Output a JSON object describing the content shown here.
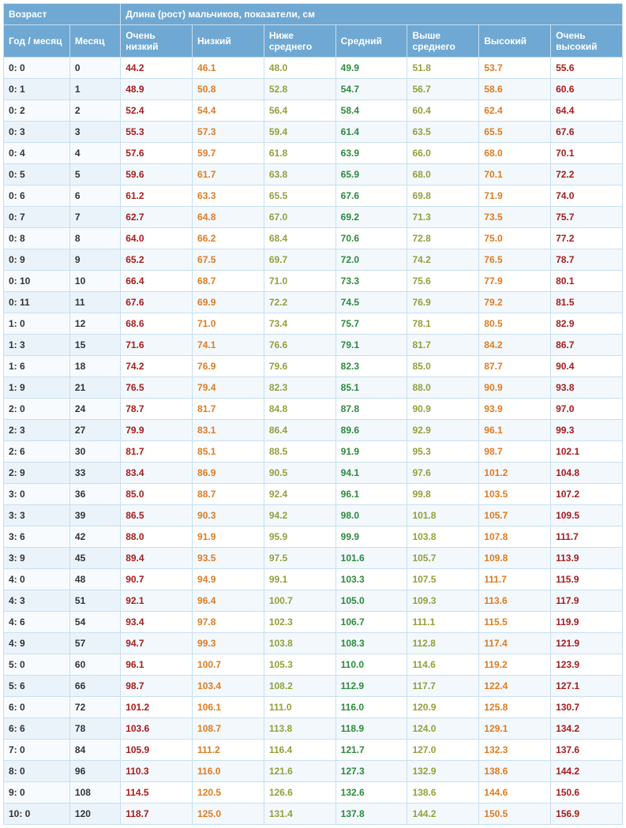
{
  "headers": {
    "age_group": "Возраст",
    "length_group": "Длина (рост) мальчиков, показатели, см",
    "year_month": "Год / месяц",
    "month": "Месяц",
    "cols": [
      "Очень низкий",
      "Низкий",
      "Ниже среднего",
      "Средний",
      "Выше среднего",
      "Высокий",
      "Очень высокий"
    ]
  },
  "col_colors": [
    "c0",
    "c1",
    "c2",
    "c3",
    "c2",
    "c1",
    "c0"
  ],
  "rows": [
    {
      "age": "0: 0",
      "m": "0",
      "v": [
        "44.2",
        "46.1",
        "48.0",
        "49.9",
        "51.8",
        "53.7",
        "55.6"
      ]
    },
    {
      "age": "0: 1",
      "m": "1",
      "v": [
        "48.9",
        "50.8",
        "52.8",
        "54.7",
        "56.7",
        "58.6",
        "60.6"
      ]
    },
    {
      "age": "0: 2",
      "m": "2",
      "v": [
        "52.4",
        "54.4",
        "56.4",
        "58.4",
        "60.4",
        "62.4",
        "64.4"
      ]
    },
    {
      "age": "0: 3",
      "m": "3",
      "v": [
        "55.3",
        "57.3",
        "59.4",
        "61.4",
        "63.5",
        "65.5",
        "67.6"
      ]
    },
    {
      "age": "0: 4",
      "m": "4",
      "v": [
        "57.6",
        "59.7",
        "61.8",
        "63.9",
        "66.0",
        "68.0",
        "70.1"
      ]
    },
    {
      "age": "0: 5",
      "m": "5",
      "v": [
        "59.6",
        "61.7",
        "63.8",
        "65.9",
        "68.0",
        "70.1",
        "72.2"
      ]
    },
    {
      "age": "0: 6",
      "m": "6",
      "v": [
        "61.2",
        "63.3",
        "65.5",
        "67.6",
        "69.8",
        "71.9",
        "74.0"
      ]
    },
    {
      "age": "0: 7",
      "m": "7",
      "v": [
        "62.7",
        "64.8",
        "67.0",
        "69.2",
        "71.3",
        "73.5",
        "75.7"
      ]
    },
    {
      "age": "0: 8",
      "m": "8",
      "v": [
        "64.0",
        "66.2",
        "68.4",
        "70.6",
        "72.8",
        "75.0",
        "77.2"
      ]
    },
    {
      "age": "0: 9",
      "m": "9",
      "v": [
        "65.2",
        "67.5",
        "69.7",
        "72.0",
        "74.2",
        "76.5",
        "78.7"
      ]
    },
    {
      "age": "0: 10",
      "m": "10",
      "v": [
        "66.4",
        "68.7",
        "71.0",
        "73.3",
        "75.6",
        "77.9",
        "80.1"
      ]
    },
    {
      "age": "0: 11",
      "m": "11",
      "v": [
        "67.6",
        "69.9",
        "72.2",
        "74.5",
        "76.9",
        "79.2",
        "81.5"
      ]
    },
    {
      "age": "1: 0",
      "m": "12",
      "v": [
        "68.6",
        "71.0",
        "73.4",
        "75.7",
        "78.1",
        "80.5",
        "82.9"
      ]
    },
    {
      "age": "1: 3",
      "m": "15",
      "v": [
        "71.6",
        "74.1",
        "76.6",
        "79.1",
        "81.7",
        "84.2",
        "86.7"
      ]
    },
    {
      "age": "1: 6",
      "m": "18",
      "v": [
        "74.2",
        "76.9",
        "79.6",
        "82.3",
        "85.0",
        "87.7",
        "90.4"
      ]
    },
    {
      "age": "1: 9",
      "m": "21",
      "v": [
        "76.5",
        "79.4",
        "82.3",
        "85.1",
        "88.0",
        "90.9",
        "93.8"
      ]
    },
    {
      "age": "2: 0",
      "m": "24",
      "v": [
        "78.7",
        "81.7",
        "84.8",
        "87.8",
        "90.9",
        "93.9",
        "97.0"
      ]
    },
    {
      "age": "2: 3",
      "m": "27",
      "v": [
        "79.9",
        "83.1",
        "86.4",
        "89.6",
        "92.9",
        "96.1",
        "99.3"
      ]
    },
    {
      "age": "2: 6",
      "m": "30",
      "v": [
        "81.7",
        "85.1",
        "88.5",
        "91.9",
        "95.3",
        "98.7",
        "102.1"
      ]
    },
    {
      "age": "2: 9",
      "m": "33",
      "v": [
        "83.4",
        "86.9",
        "90.5",
        "94.1",
        "97.6",
        "101.2",
        "104.8"
      ]
    },
    {
      "age": "3: 0",
      "m": "36",
      "v": [
        "85.0",
        "88.7",
        "92.4",
        "96.1",
        "99.8",
        "103.5",
        "107.2"
      ]
    },
    {
      "age": "3: 3",
      "m": "39",
      "v": [
        "86.5",
        "90.3",
        "94.2",
        "98.0",
        "101.8",
        "105.7",
        "109.5"
      ]
    },
    {
      "age": "3: 6",
      "m": "42",
      "v": [
        "88.0",
        "91.9",
        "95.9",
        "99.9",
        "103.8",
        "107.8",
        "111.7"
      ]
    },
    {
      "age": "3: 9",
      "m": "45",
      "v": [
        "89.4",
        "93.5",
        "97.5",
        "101.6",
        "105.7",
        "109.8",
        "113.9"
      ]
    },
    {
      "age": "4: 0",
      "m": "48",
      "v": [
        "90.7",
        "94.9",
        "99.1",
        "103.3",
        "107.5",
        "111.7",
        "115.9"
      ]
    },
    {
      "age": "4: 3",
      "m": "51",
      "v": [
        "92.1",
        "96.4",
        "100.7",
        "105.0",
        "109.3",
        "113.6",
        "117.9"
      ]
    },
    {
      "age": "4: 6",
      "m": "54",
      "v": [
        "93.4",
        "97.8",
        "102.3",
        "106.7",
        "111.1",
        "115.5",
        "119.9"
      ]
    },
    {
      "age": "4: 9",
      "m": "57",
      "v": [
        "94.7",
        "99.3",
        "103.8",
        "108.3",
        "112.8",
        "117.4",
        "121.9"
      ]
    },
    {
      "age": "5: 0",
      "m": "60",
      "v": [
        "96.1",
        "100.7",
        "105.3",
        "110.0",
        "114.6",
        "119.2",
        "123.9"
      ]
    },
    {
      "age": "5: 6",
      "m": "66",
      "v": [
        "98.7",
        "103.4",
        "108.2",
        "112.9",
        "117.7",
        "122.4",
        "127.1"
      ]
    },
    {
      "age": "6: 0",
      "m": "72",
      "v": [
        "101.2",
        "106.1",
        "111.0",
        "116.0",
        "120.9",
        "125.8",
        "130.7"
      ]
    },
    {
      "age": "6: 6",
      "m": "78",
      "v": [
        "103.6",
        "108.7",
        "113.8",
        "118.9",
        "124.0",
        "129.1",
        "134.2"
      ]
    },
    {
      "age": "7: 0",
      "m": "84",
      "v": [
        "105.9",
        "111.2",
        "116.4",
        "121.7",
        "127.0",
        "132.3",
        "137.6"
      ]
    },
    {
      "age": "8: 0",
      "m": "96",
      "v": [
        "110.3",
        "116.0",
        "121.6",
        "127.3",
        "132.9",
        "138.6",
        "144.2"
      ]
    },
    {
      "age": "9: 0",
      "m": "108",
      "v": [
        "114.5",
        "120.5",
        "126.6",
        "132.6",
        "138.6",
        "144.6",
        "150.6"
      ]
    },
    {
      "age": "10: 0",
      "m": "120",
      "v": [
        "118.7",
        "125.0",
        "131.4",
        "137.8",
        "144.2",
        "150.5",
        "156.9"
      ]
    }
  ]
}
